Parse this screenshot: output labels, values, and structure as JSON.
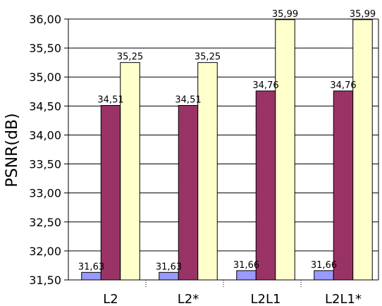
{
  "chart_data": {
    "type": "bar",
    "ylabel": "PSNR(dB)",
    "ylim": [
      31.5,
      36.0
    ],
    "ytick_step": 0.5,
    "grid": "horizontal",
    "legend": "none",
    "categories": [
      "L2",
      "L2*",
      "L2L1",
      "L2L1*"
    ],
    "series": [
      {
        "values": [
          31.63,
          31.63,
          31.66,
          31.66
        ],
        "labels": [
          "31,63",
          "31,63",
          "31,66",
          "31,66"
        ],
        "color": "#9999ff"
      },
      {
        "values": [
          34.51,
          34.51,
          34.76,
          34.76
        ],
        "labels": [
          "34,51",
          "34,51",
          "34,76",
          "34,76"
        ],
        "color": "#993366"
      },
      {
        "values": [
          35.25,
          35.25,
          35.99,
          35.99
        ],
        "labels": [
          "35,25",
          "35,25",
          "35,99",
          "35,99"
        ],
        "color": "#ffffcc"
      }
    ],
    "yticks": [
      "31,50",
      "32,00",
      "32,50",
      "33,00",
      "33,50",
      "34,00",
      "34,50",
      "35,00",
      "35,50",
      "36,00"
    ]
  }
}
